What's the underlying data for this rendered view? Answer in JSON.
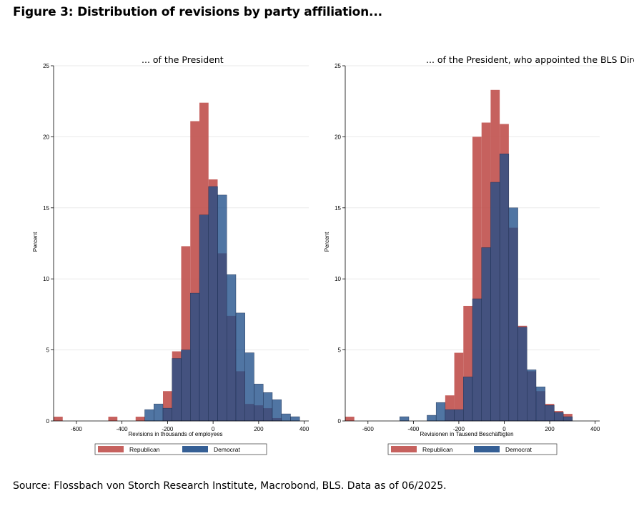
{
  "figure": {
    "title": "Figure 3: Distribution of revisions by party affiliation...",
    "source": "Source: Flossbach von Storch Research Institute, Macrobond, BLS. Data as of 06/2025."
  },
  "colors": {
    "republican": "#c0504d",
    "democrat": "#1f4e89"
  },
  "chart_data": [
    {
      "type": "bar",
      "title": "... of the President",
      "xlabel": "Revisions in thousands of employees",
      "ylabel": "Percent",
      "xlim": [
        -700,
        420
      ],
      "ylim": [
        0,
        25
      ],
      "xticks": [
        -600,
        -400,
        -200,
        0,
        200,
        400
      ],
      "yticks": [
        0,
        5,
        10,
        15,
        20,
        25
      ],
      "bin_width": 40,
      "legend": [
        "Republican",
        "Democrat"
      ],
      "legend_position": "bottom",
      "series": [
        {
          "name": "Republican",
          "bins": [
            [
              -700,
              0.3
            ],
            [
              -460,
              0.3
            ],
            [
              -340,
              0.3
            ],
            [
              -220,
              2.1
            ],
            [
              -180,
              4.9
            ],
            [
              -140,
              12.3
            ],
            [
              -100,
              21.1
            ],
            [
              -60,
              22.4
            ],
            [
              -20,
              17.0
            ],
            [
              20,
              11.8
            ],
            [
              60,
              7.4
            ],
            [
              100,
              3.5
            ],
            [
              140,
              1.2
            ],
            [
              180,
              1.1
            ],
            [
              220,
              0.9
            ],
            [
              260,
              0.2
            ]
          ]
        },
        {
          "name": "Democrat",
          "bins": [
            [
              -300,
              0.8
            ],
            [
              -260,
              1.2
            ],
            [
              -220,
              0.9
            ],
            [
              -180,
              4.4
            ],
            [
              -140,
              5.0
            ],
            [
              -100,
              9.0
            ],
            [
              -60,
              14.5
            ],
            [
              -20,
              16.5
            ],
            [
              20,
              15.9
            ],
            [
              60,
              10.3
            ],
            [
              100,
              7.6
            ],
            [
              140,
              4.8
            ],
            [
              180,
              2.6
            ],
            [
              220,
              2.0
            ],
            [
              260,
              1.5
            ],
            [
              300,
              0.5
            ],
            [
              340,
              0.3
            ]
          ]
        }
      ]
    },
    {
      "type": "bar",
      "title": "... of the President, who appointed the BLS Director",
      "xlabel": "Revisionen in Tausend Beschäftigten",
      "ylabel": "Percent",
      "xlim": [
        -700,
        420
      ],
      "ylim": [
        0,
        25
      ],
      "xticks": [
        -600,
        -400,
        -200,
        0,
        200,
        400
      ],
      "yticks": [
        0,
        5,
        10,
        15,
        20,
        25
      ],
      "bin_width": 40,
      "legend": [
        "Republican",
        "Democrat"
      ],
      "legend_position": "bottom",
      "series": [
        {
          "name": "Republican",
          "bins": [
            [
              -700,
              0.3
            ],
            [
              -260,
              1.8
            ],
            [
              -220,
              4.8
            ],
            [
              -180,
              8.1
            ],
            [
              -140,
              20.0
            ],
            [
              -100,
              21.0
            ],
            [
              -60,
              23.3
            ],
            [
              -20,
              20.9
            ],
            [
              20,
              13.6
            ],
            [
              60,
              6.7
            ],
            [
              100,
              3.5
            ],
            [
              140,
              2.1
            ],
            [
              180,
              1.2
            ],
            [
              220,
              0.7
            ],
            [
              260,
              0.5
            ]
          ]
        },
        {
          "name": "Democrat",
          "bins": [
            [
              -460,
              0.3
            ],
            [
              -340,
              0.4
            ],
            [
              -300,
              1.3
            ],
            [
              -260,
              0.8
            ],
            [
              -220,
              0.8
            ],
            [
              -180,
              3.1
            ],
            [
              -140,
              8.6
            ],
            [
              -100,
              12.2
            ],
            [
              -60,
              16.8
            ],
            [
              -20,
              18.8
            ],
            [
              20,
              15.0
            ],
            [
              60,
              6.6
            ],
            [
              100,
              3.6
            ],
            [
              140,
              2.4
            ],
            [
              180,
              1.1
            ],
            [
              220,
              0.6
            ],
            [
              260,
              0.3
            ]
          ]
        }
      ]
    }
  ]
}
